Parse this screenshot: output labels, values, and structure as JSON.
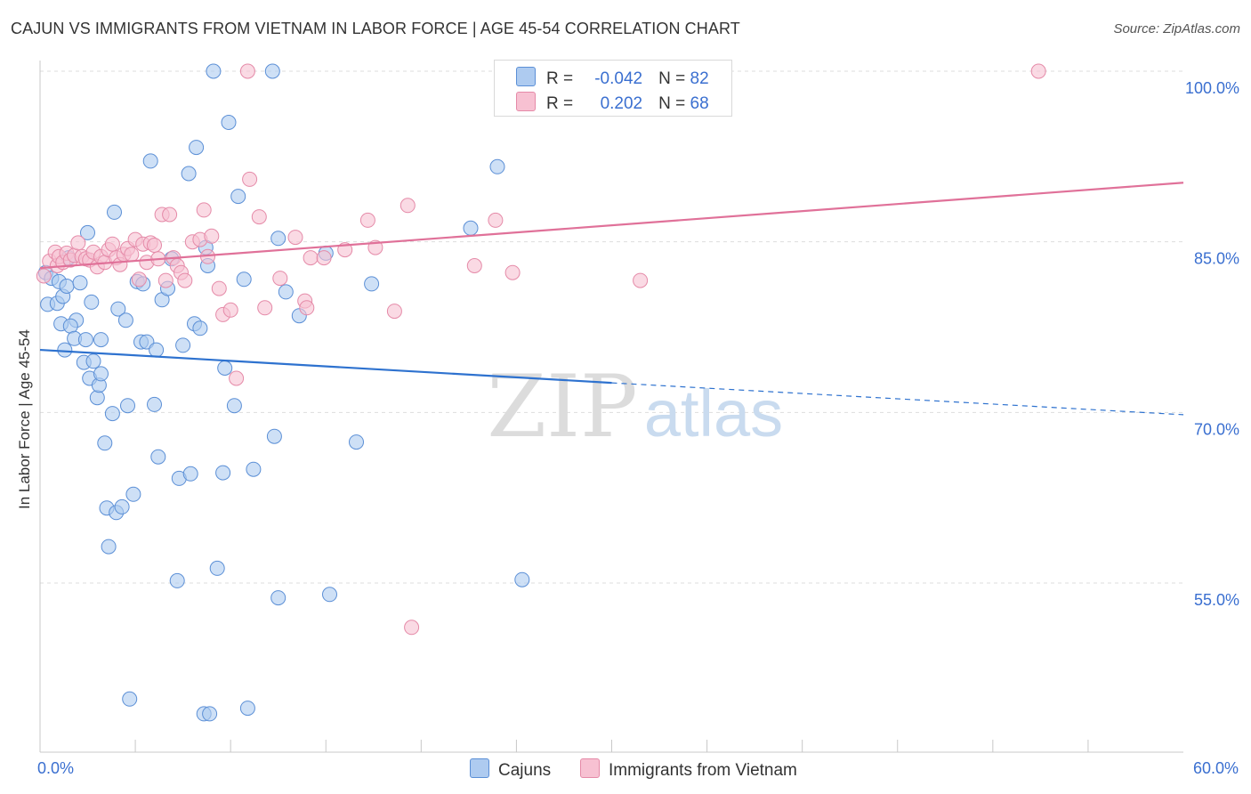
{
  "title": "CAJUN VS IMMIGRANTS FROM VIETNAM IN LABOR FORCE | AGE 45-54 CORRELATION CHART",
  "source": "Source: ZipAtlas.com",
  "watermark": {
    "zip": "ZIP",
    "atlas": "atlas"
  },
  "colors": {
    "blue_fill": "#aecbf0",
    "blue_stroke": "#5b8fd6",
    "blue_line": "#2e72cf",
    "pink_fill": "#f7c1d2",
    "pink_stroke": "#e58aa8",
    "pink_line": "#e07199",
    "axis_text": "#3a6fd0",
    "grid": "#dddddd"
  },
  "legend": {
    "rows": [
      {
        "r_label": "R =",
        "r_value": "-0.042",
        "n_label": "N =",
        "n_value": "82",
        "color": "blue"
      },
      {
        "r_label": "R =",
        "r_value": "0.202",
        "n_label": "N =",
        "n_value": "68",
        "color": "pink"
      }
    ]
  },
  "bottom_legend": {
    "cajuns": "Cajuns",
    "vietnam": "Immigrants from Vietnam"
  },
  "chart_data": {
    "type": "scatter",
    "title": "CAJUN VS IMMIGRANTS FROM VIETNAM IN LABOR FORCE | AGE 45-54 CORRELATION CHART",
    "xlabel": "",
    "ylabel": "In Labor Force | Age 45-54",
    "xlim": [
      0,
      60
    ],
    "ylim": [
      40,
      101.5
    ],
    "x_tick_labels": [
      "0.0%",
      "60.0%"
    ],
    "y_ticks": [
      55,
      70,
      85,
      100
    ],
    "y_tick_labels": [
      "55.0%",
      "70.0%",
      "85.0%",
      "100.0%"
    ],
    "grid": true,
    "legend_placement": "top-center",
    "series": [
      {
        "name": "Cajuns",
        "color": "blue",
        "r": -0.042,
        "n": 82,
        "trend": {
          "solid": [
            [
              0,
              75.5
            ],
            [
              30,
              72.6
            ]
          ],
          "dashed": [
            [
              30,
              72.6
            ],
            [
              60,
              69.8
            ]
          ]
        },
        "points": [
          [
            0.3,
            82.3
          ],
          [
            0.4,
            79.5
          ],
          [
            0.6,
            81.8
          ],
          [
            0.9,
            79.6
          ],
          [
            1.0,
            81.5
          ],
          [
            1.1,
            77.8
          ],
          [
            1.3,
            75.5
          ],
          [
            1.2,
            80.2
          ],
          [
            1.5,
            83.6
          ],
          [
            1.4,
            81.1
          ],
          [
            1.9,
            78.1
          ],
          [
            1.6,
            77.6
          ],
          [
            1.8,
            76.5
          ],
          [
            2.1,
            81.4
          ],
          [
            2.3,
            74.4
          ],
          [
            2.4,
            76.4
          ],
          [
            2.5,
            85.8
          ],
          [
            2.6,
            73.0
          ],
          [
            2.7,
            79.7
          ],
          [
            2.8,
            74.5
          ],
          [
            3.0,
            71.3
          ],
          [
            3.1,
            72.4
          ],
          [
            3.2,
            73.4
          ],
          [
            3.2,
            76.4
          ],
          [
            3.4,
            67.3
          ],
          [
            3.6,
            58.2
          ],
          [
            3.5,
            61.6
          ],
          [
            3.8,
            69.9
          ],
          [
            3.9,
            87.6
          ],
          [
            4.0,
            61.2
          ],
          [
            4.1,
            79.1
          ],
          [
            4.3,
            61.7
          ],
          [
            4.5,
            78.1
          ],
          [
            4.6,
            70.6
          ],
          [
            4.7,
            44.8
          ],
          [
            4.9,
            62.8
          ],
          [
            5.1,
            81.5
          ],
          [
            5.3,
            76.2
          ],
          [
            5.4,
            81.3
          ],
          [
            5.6,
            76.2
          ],
          [
            5.8,
            92.1
          ],
          [
            6.0,
            70.7
          ],
          [
            6.2,
            66.1
          ],
          [
            6.4,
            79.9
          ],
          [
            6.7,
            80.9
          ],
          [
            6.9,
            83.5
          ],
          [
            7.2,
            55.2
          ],
          [
            7.3,
            64.2
          ],
          [
            7.5,
            75.9
          ],
          [
            7.8,
            91.0
          ],
          [
            7.9,
            64.6
          ],
          [
            8.1,
            77.8
          ],
          [
            8.2,
            93.3
          ],
          [
            8.4,
            77.4
          ],
          [
            8.6,
            43.5
          ],
          [
            8.7,
            84.5
          ],
          [
            8.9,
            43.5
          ],
          [
            8.8,
            82.9
          ],
          [
            9.1,
            100.0
          ],
          [
            9.3,
            56.3
          ],
          [
            9.6,
            64.7
          ],
          [
            9.7,
            73.9
          ],
          [
            9.9,
            95.5
          ],
          [
            10.2,
            70.6
          ],
          [
            10.4,
            89.0
          ],
          [
            10.7,
            81.7
          ],
          [
            10.9,
            44.0
          ],
          [
            11.2,
            65.0
          ],
          [
            12.2,
            100.0
          ],
          [
            12.5,
            85.3
          ],
          [
            12.3,
            67.9
          ],
          [
            12.5,
            53.7
          ],
          [
            12.9,
            80.6
          ],
          [
            13.6,
            78.5
          ],
          [
            15.0,
            84.0
          ],
          [
            15.2,
            54.0
          ],
          [
            16.6,
            67.4
          ],
          [
            17.4,
            81.3
          ],
          [
            22.6,
            86.2
          ],
          [
            24.0,
            91.6
          ],
          [
            25.3,
            55.3
          ],
          [
            6.1,
            75.5
          ]
        ]
      },
      {
        "name": "Immigrants from Vietnam",
        "color": "pink",
        "r": 0.202,
        "n": 68,
        "trend": {
          "solid": [
            [
              0,
              82.7
            ],
            [
              60,
              90.2
            ]
          ]
        },
        "points": [
          [
            0.2,
            82.0
          ],
          [
            0.5,
            83.3
          ],
          [
            0.8,
            84.1
          ],
          [
            0.9,
            82.9
          ],
          [
            1.0,
            83.7
          ],
          [
            1.2,
            83.2
          ],
          [
            1.4,
            84.0
          ],
          [
            1.6,
            83.4
          ],
          [
            1.8,
            83.8
          ],
          [
            2.0,
            84.9
          ],
          [
            2.2,
            83.7
          ],
          [
            2.4,
            83.5
          ],
          [
            2.6,
            83.4
          ],
          [
            2.8,
            84.1
          ],
          [
            3.0,
            82.8
          ],
          [
            3.2,
            83.7
          ],
          [
            3.4,
            83.2
          ],
          [
            3.6,
            84.3
          ],
          [
            3.8,
            84.8
          ],
          [
            4.0,
            83.6
          ],
          [
            4.2,
            83.0
          ],
          [
            4.4,
            83.9
          ],
          [
            4.6,
            84.4
          ],
          [
            4.8,
            83.9
          ],
          [
            5.0,
            85.2
          ],
          [
            5.2,
            81.7
          ],
          [
            5.4,
            84.8
          ],
          [
            5.6,
            83.2
          ],
          [
            5.8,
            84.9
          ],
          [
            6.0,
            84.7
          ],
          [
            6.2,
            83.5
          ],
          [
            6.4,
            87.4
          ],
          [
            6.6,
            81.6
          ],
          [
            6.8,
            87.4
          ],
          [
            7.0,
            83.6
          ],
          [
            7.2,
            82.9
          ],
          [
            7.4,
            82.3
          ],
          [
            7.6,
            81.6
          ],
          [
            8.0,
            85.0
          ],
          [
            8.4,
            85.2
          ],
          [
            8.6,
            87.8
          ],
          [
            8.8,
            83.7
          ],
          [
            9.0,
            85.5
          ],
          [
            9.4,
            80.9
          ],
          [
            9.6,
            78.6
          ],
          [
            10.0,
            79.0
          ],
          [
            10.3,
            73.0
          ],
          [
            10.9,
            100.0
          ],
          [
            11.0,
            90.5
          ],
          [
            11.5,
            87.2
          ],
          [
            11.8,
            79.2
          ],
          [
            12.6,
            81.8
          ],
          [
            13.4,
            85.4
          ],
          [
            13.9,
            79.8
          ],
          [
            14.0,
            79.2
          ],
          [
            14.2,
            83.6
          ],
          [
            14.9,
            83.6
          ],
          [
            16.0,
            84.3
          ],
          [
            17.2,
            86.9
          ],
          [
            17.6,
            84.5
          ],
          [
            18.6,
            78.9
          ],
          [
            19.3,
            88.2
          ],
          [
            19.5,
            51.1
          ],
          [
            22.8,
            82.9
          ],
          [
            23.9,
            86.9
          ],
          [
            24.8,
            82.3
          ],
          [
            31.5,
            81.6
          ],
          [
            52.4,
            100.0
          ]
        ]
      }
    ]
  }
}
